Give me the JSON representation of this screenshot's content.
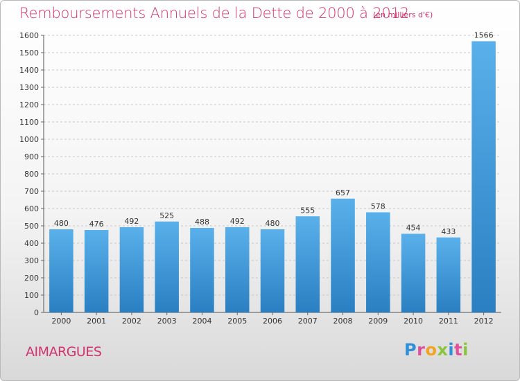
{
  "chart_data": {
    "type": "bar",
    "title": "Remboursements Annuels de la Dette de 2000 à 2012",
    "subtitle": "(en milliers d'€)",
    "categories": [
      "2000",
      "2001",
      "2002",
      "2003",
      "2004",
      "2005",
      "2006",
      "2007",
      "2008",
      "2009",
      "2010",
      "2011",
      "2012"
    ],
    "values": [
      480,
      476,
      492,
      525,
      488,
      492,
      480,
      555,
      657,
      578,
      454,
      433,
      1566
    ],
    "data_labels": [
      "480",
      "476",
      "492",
      "525",
      "488",
      "492",
      "480",
      "555",
      "657",
      "578",
      "454",
      "433",
      "1566"
    ],
    "ylim": [
      0,
      1600
    ],
    "yticks": [
      0,
      100,
      200,
      300,
      400,
      500,
      600,
      700,
      800,
      900,
      1000,
      1100,
      1200,
      1300,
      1400,
      1500,
      1600
    ],
    "grid": true,
    "bar_color_top": "#5ab0ea",
    "bar_color_bottom": "#2a7fc2",
    "xlabel": "",
    "ylabel": ""
  },
  "footer": {
    "city": "AIMARGUES",
    "logo_letters": [
      "P",
      "r",
      "o",
      "x",
      "i",
      "t",
      "i"
    ],
    "logo_colors": [
      "#2f8fd8",
      "#e0509a",
      "#f2a324",
      "#8bc53f",
      "#2f8fd8",
      "#e0509a",
      "#8bc53f"
    ]
  },
  "colors": {
    "accent": "#d2336e"
  }
}
